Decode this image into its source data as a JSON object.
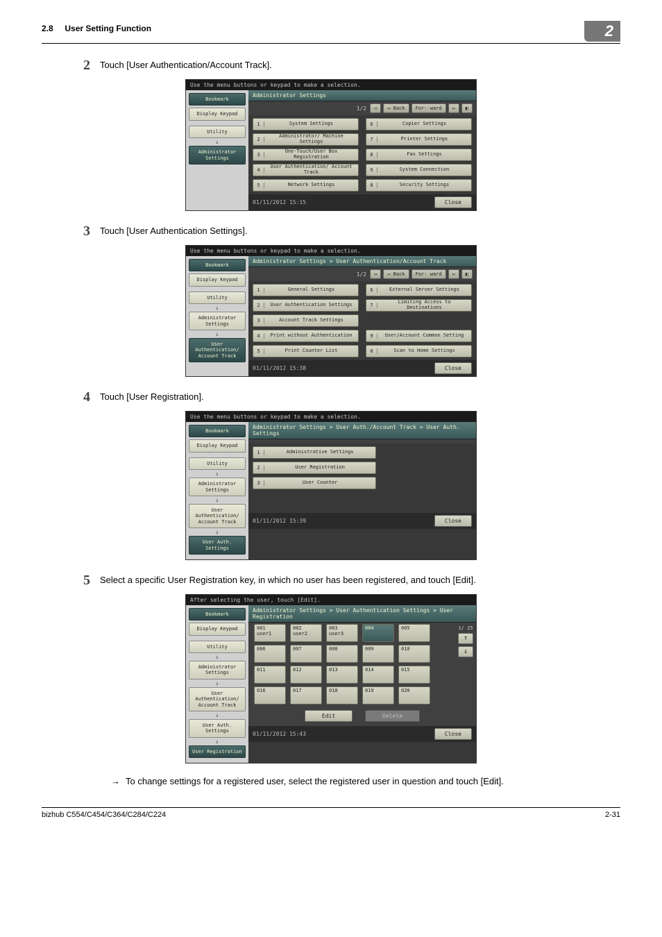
{
  "header": {
    "section_num": "2.8",
    "section_title": "User Setting Function",
    "chapter_num": "2"
  },
  "steps": [
    {
      "num": "2",
      "text": "Touch [User Authentication/Account Track]."
    },
    {
      "num": "3",
      "text": "Touch [User Authentication Settings]."
    },
    {
      "num": "4",
      "text": "Touch [User Registration]."
    },
    {
      "num": "5",
      "text": "Select a specific User Registration key, in which no user has been registered, and touch [Edit]."
    }
  ],
  "note_arrow": "→",
  "note5": "To change settings for a registered user, select the registered user in question and touch [Edit].",
  "footer": {
    "left": "bizhub C554/C454/C364/C284/C224",
    "right": "2-31"
  },
  "ui_common": {
    "top_hint": "Use the menu buttons or keypad to make a selection.",
    "bookmark": "Bookmark",
    "display_keypad": "Display Keypad",
    "utility": "Utility",
    "admin_settings": "Administrator Settings",
    "user_auth_acct": "User Authentication/ Account Track",
    "user_auth_settings": "User Auth. Settings",
    "user_registration": "User Registration",
    "back": "↤ Back",
    "forw": "For- ward",
    "double_fwd": "↦",
    "close": "Close",
    "page12": "1/2"
  },
  "screen2": {
    "breadcrumb": "Administrator Settings",
    "timestamp": "01/11/2012   15:15",
    "left": [
      {
        "n": "1",
        "l": "System Settings"
      },
      {
        "n": "2",
        "l": "Administrator/ Machine Settings"
      },
      {
        "n": "3",
        "l": "One-Touch/User Box Registration"
      },
      {
        "n": "4",
        "l": "User Authentication/ Account Track"
      },
      {
        "n": "5",
        "l": "Network Settings"
      }
    ],
    "right": [
      {
        "n": "6",
        "l": "Copier Settings"
      },
      {
        "n": "7",
        "l": "Printer Settings"
      },
      {
        "n": "8",
        "l": "Fax Settings"
      },
      {
        "n": "9",
        "l": "System Connection"
      },
      {
        "n": "0",
        "l": "Security Settings"
      }
    ]
  },
  "screen3": {
    "breadcrumb": "Administrator Settings > User Authentication/Account Track",
    "timestamp": "01/11/2012   15:38",
    "left": [
      {
        "n": "1",
        "l": "General Settings"
      },
      {
        "n": "2",
        "l": "User Authentication Settings"
      },
      {
        "n": "3",
        "l": "Account Track Settings"
      },
      {
        "n": "4",
        "l": "Print without Authentication"
      },
      {
        "n": "5",
        "l": "Print Counter List"
      }
    ],
    "right": [
      {
        "n": "6",
        "l": "External Server Settings"
      },
      {
        "n": "7",
        "l": "Limiting Access to Destinations"
      },
      {
        "n": "9",
        "l": "User/Account Common Setting"
      },
      {
        "n": "0",
        "l": "Scan to Home Settings"
      }
    ]
  },
  "screen4": {
    "breadcrumb": "Administrator Settings > User Auth./Account Track > User Auth. Settings",
    "timestamp": "01/11/2012   15:39",
    "items": [
      {
        "n": "1",
        "l": "Administrative Settings"
      },
      {
        "n": "2",
        "l": "User Registration"
      },
      {
        "n": "3",
        "l": "User Counter"
      }
    ]
  },
  "screen5": {
    "top_hint": "After selecting the user, touch [Edit].",
    "breadcrumb": "Administrator Settings > User Authentication Settings > User Registration",
    "timestamp": "01/11/2012   15:43",
    "page": "1/ 25",
    "rows": [
      [
        {
          "n": "001",
          "u": "user1"
        },
        {
          "n": "002",
          "u": "user2"
        },
        {
          "n": "003",
          "u": "user3"
        },
        {
          "n": "004",
          "u": "",
          "sel": true
        },
        {
          "n": "005",
          "u": ""
        }
      ],
      [
        {
          "n": "006",
          "u": ""
        },
        {
          "n": "007",
          "u": ""
        },
        {
          "n": "008",
          "u": ""
        },
        {
          "n": "009",
          "u": ""
        },
        {
          "n": "010",
          "u": ""
        }
      ],
      [
        {
          "n": "011",
          "u": ""
        },
        {
          "n": "012",
          "u": ""
        },
        {
          "n": "013",
          "u": ""
        },
        {
          "n": "014",
          "u": ""
        },
        {
          "n": "015",
          "u": ""
        }
      ],
      [
        {
          "n": "016",
          "u": ""
        },
        {
          "n": "017",
          "u": ""
        },
        {
          "n": "018",
          "u": ""
        },
        {
          "n": "019",
          "u": ""
        },
        {
          "n": "020",
          "u": ""
        }
      ]
    ],
    "edit": "Edit",
    "delete": "Delete",
    "up": "↑",
    "down": "↓"
  }
}
